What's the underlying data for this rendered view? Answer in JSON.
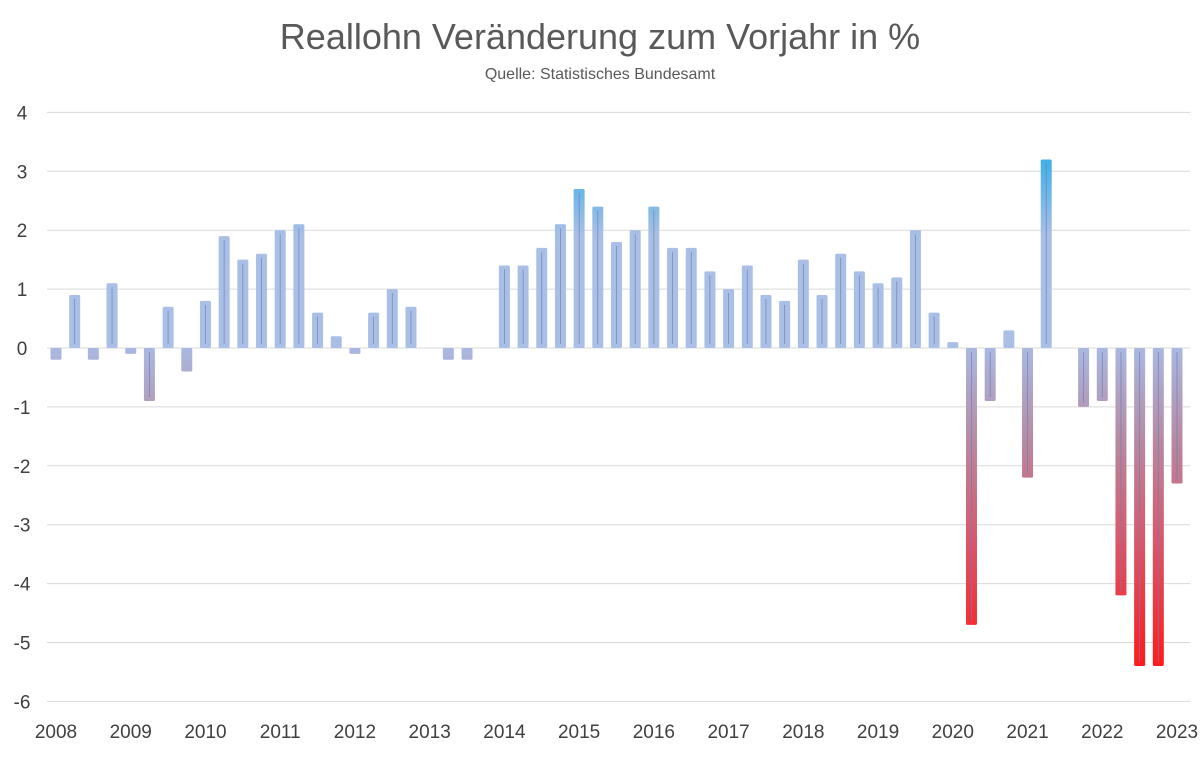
{
  "chart_data": {
    "type": "bar",
    "title": "Reallohn Veränderung zum Vorjahr in %",
    "subtitle": "Quelle: Statistisches Bundesamt",
    "xlabel": "",
    "ylabel": "",
    "ylim": [
      -6,
      4
    ],
    "yticks": [
      "4",
      "3",
      "2",
      "1",
      "0",
      "-1",
      "-2",
      "-3",
      "-4",
      "-5",
      "-6"
    ],
    "xticks": [
      "2008",
      "2009",
      "2010",
      "2011",
      "2012",
      "2013",
      "2014",
      "2015",
      "2016",
      "2017",
      "2018",
      "2019",
      "2020",
      "2021",
      "2022",
      "2023"
    ],
    "grid": true,
    "legend": "none",
    "colors": {
      "positive": "#a9bfe6",
      "high": "#3fb1e8",
      "negative": "#ff1a1a",
      "zero_line": "#d9d9d9",
      "grid": "#d9d9d9"
    },
    "values": [
      -0.2,
      0.9,
      -0.2,
      1.1,
      -0.1,
      -0.9,
      0.7,
      -0.4,
      0.8,
      1.9,
      1.5,
      1.6,
      2.0,
      2.1,
      0.6,
      0.2,
      -0.1,
      0.6,
      1.0,
      0.7,
      null,
      -0.2,
      -0.2,
      null,
      1.4,
      1.4,
      1.7,
      2.1,
      2.7,
      2.4,
      1.8,
      2.0,
      2.4,
      1.7,
      1.7,
      1.3,
      1.0,
      1.4,
      0.9,
      0.8,
      1.5,
      0.9,
      1.6,
      1.3,
      1.1,
      1.2,
      2.0,
      0.6,
      0.1,
      -4.7,
      -0.9,
      0.3,
      -2.2,
      3.2,
      null,
      -1.0,
      -0.9,
      -4.2,
      -5.4,
      -5.4,
      -2.3
    ]
  }
}
